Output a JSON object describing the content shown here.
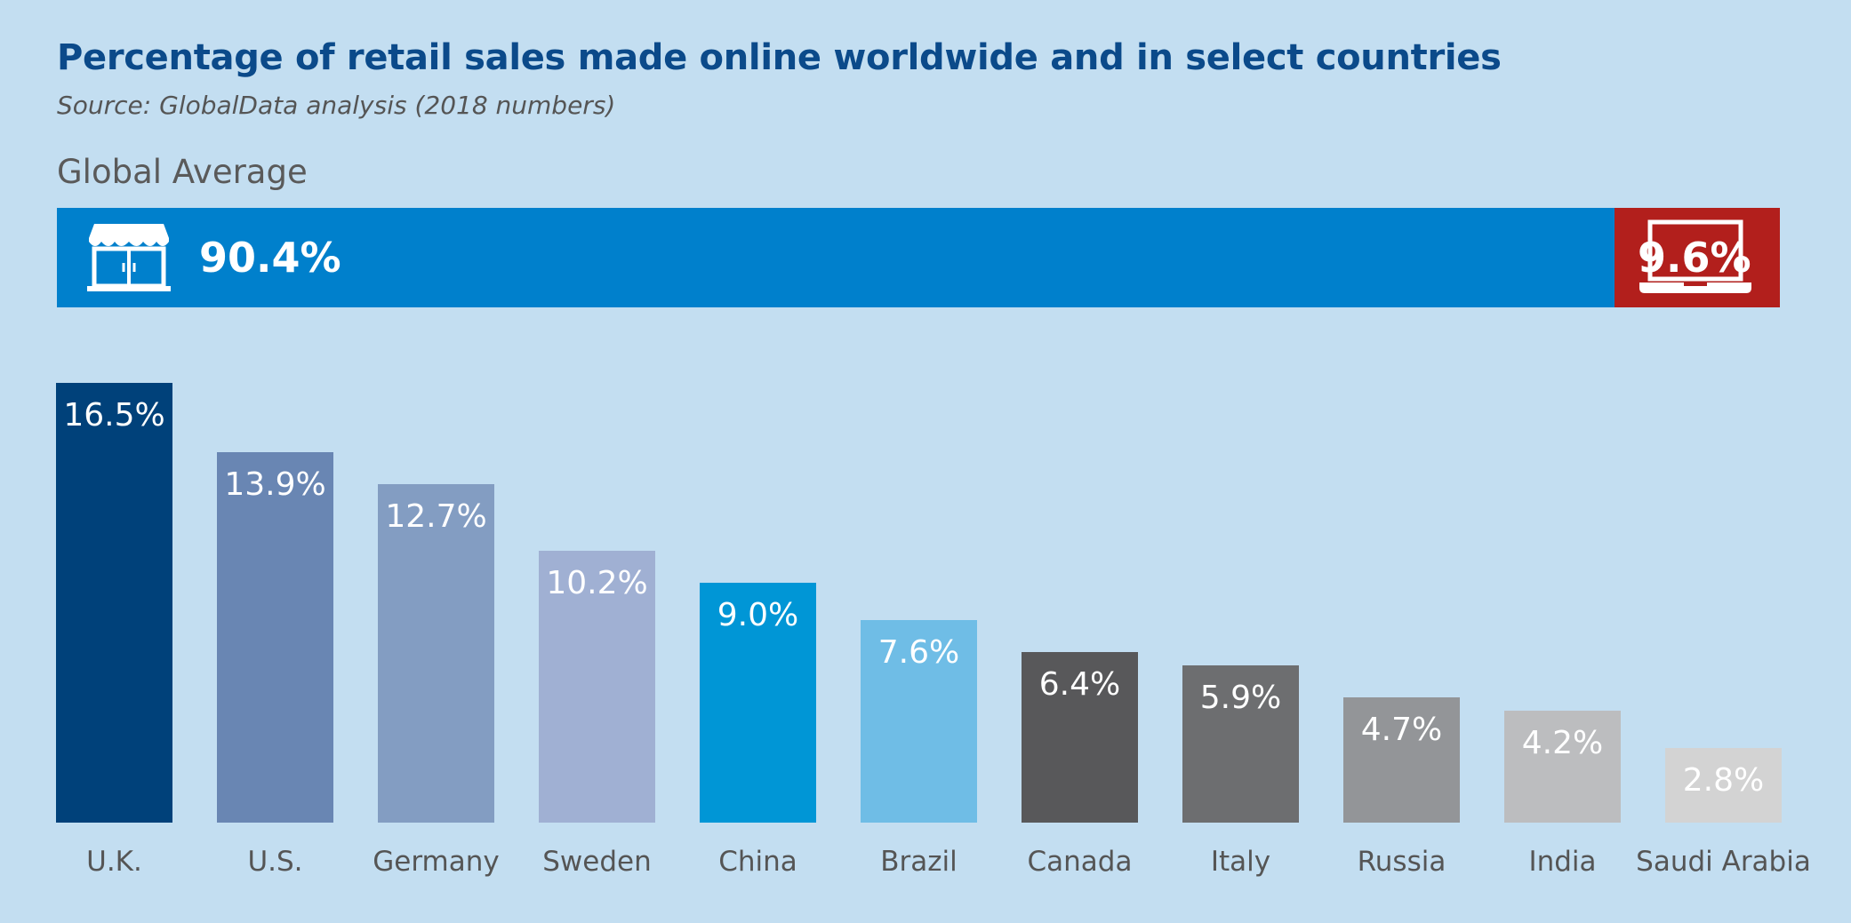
{
  "header": {
    "title": "Percentage of retail sales made online worldwide and in select countries",
    "subtitle": "Source: GlobalData analysis (2018 numbers)"
  },
  "global": {
    "label": "Global Average",
    "offline_value": 90.4,
    "offline_label": "90.4%",
    "offline_color": "#0080cc",
    "offline_icon": "storefront-icon",
    "online_value": 9.6,
    "online_label": "9.6%",
    "online_color": "#b21f1c",
    "online_icon": "laptop-icon"
  },
  "chart_data": {
    "type": "bar",
    "title": "Percentage of retail sales made online worldwide and in select countries",
    "subtitle": "Source: GlobalData analysis (2018 numbers)",
    "categories": [
      "U.K.",
      "U.S.",
      "Germany",
      "Sweden",
      "China",
      "Brazil",
      "Canada",
      "Italy",
      "Russia",
      "India",
      "Saudi Arabia"
    ],
    "values": [
      16.5,
      13.9,
      12.7,
      10.2,
      9.0,
      7.6,
      6.4,
      5.9,
      4.7,
      4.2,
      2.8
    ],
    "value_labels": [
      "16.5%",
      "13.9%",
      "12.7%",
      "10.2%",
      "9.0%",
      "7.6%",
      "6.4%",
      "5.9%",
      "4.7%",
      "4.2%",
      "2.8%"
    ],
    "colors": [
      "#00417a",
      "#6986b3",
      "#839dc2",
      "#a0b0d3",
      "#0096d6",
      "#6fbde6",
      "#58585a",
      "#6d6e70",
      "#939598",
      "#bcbdbf",
      "#d3d3d3"
    ],
    "label_colors": [
      "#ffffff",
      "#ffffff",
      "#ffffff",
      "#ffffff",
      "#ffffff",
      "#ffffff",
      "#ffffff",
      "#ffffff",
      "#ffffff",
      "#ffffff",
      "#4d4d4d"
    ],
    "xlabel": "",
    "ylabel": "",
    "ylim": [
      0,
      16.5
    ],
    "grid": false,
    "legend": "none"
  }
}
